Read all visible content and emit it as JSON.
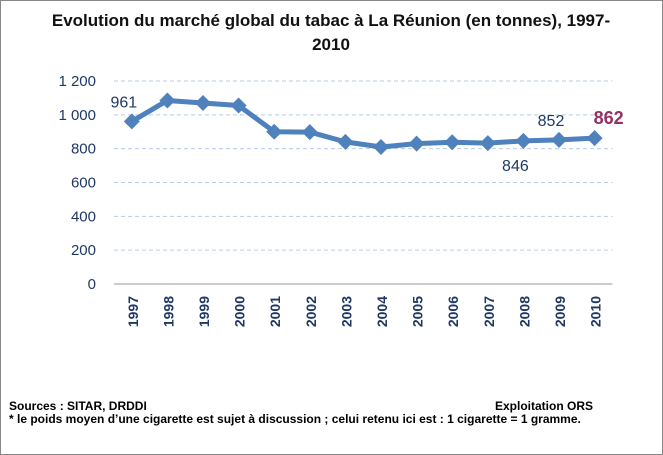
{
  "chart_data": {
    "type": "line",
    "title": "Evolution du marché global du tabac à La Réunion (en tonnes), 1997-2010",
    "categories": [
      "1997",
      "1998",
      "1999",
      "2000",
      "2001",
      "2002",
      "2003",
      "2004",
      "2005",
      "2006",
      "2007",
      "2008",
      "2009",
      "2010"
    ],
    "series": [
      {
        "name": "Marché global du tabac",
        "color": "#4f81bd",
        "values": [
          961,
          1085,
          1070,
          1055,
          900,
          898,
          840,
          810,
          830,
          838,
          833,
          846,
          852,
          862
        ]
      }
    ],
    "data_labels": [
      0,
      11,
      12,
      13
    ],
    "highlight_color": "#953163",
    "ylim": [
      0,
      1200
    ],
    "yticks": [
      0,
      200,
      400,
      600,
      800,
      {
        "value": 1000,
        "label": "1 000"
      },
      {
        "value": 1200,
        "label": "1 200"
      }
    ],
    "grid": true,
    "sources": "Sources : SITAR, DRDDI",
    "credit": "Exploitation ORS",
    "note": "* le poids moyen d’une cigarette est sujet à discussion ; celui retenu ici est : 1 cigarette = 1 gramme."
  }
}
